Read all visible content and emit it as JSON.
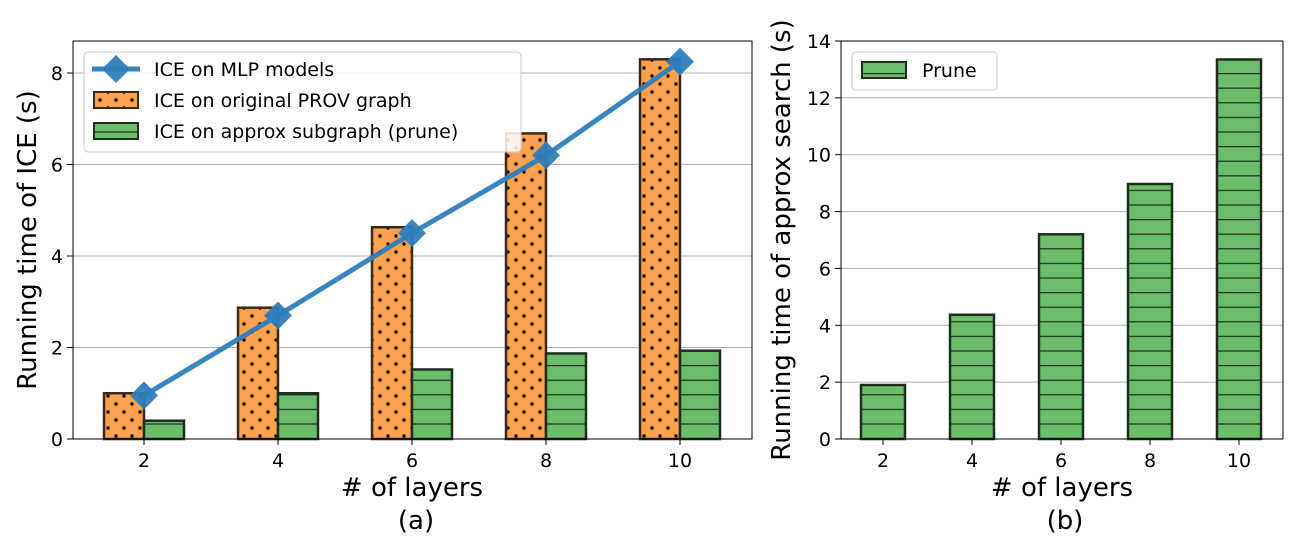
{
  "chart_data": [
    {
      "type": "bar",
      "xlabel": "# of layers",
      "ylabel": "Running time of ICE (s)",
      "subtitle": "(a)",
      "categories": [
        "2",
        "4",
        "6",
        "8",
        "10"
      ],
      "ylim": [
        0,
        8.7
      ],
      "yticks": [
        "0",
        "2",
        "4",
        "6",
        "8"
      ],
      "grid": "y",
      "legend_position": "top-left",
      "series": [
        {
          "name": "ICE on MLP models",
          "kind": "line",
          "values": [
            0.95,
            2.7,
            4.5,
            6.2,
            8.25
          ],
          "color": "#2e7ebc",
          "marker": "diamond"
        },
        {
          "name": "ICE on original PROV graph",
          "kind": "bar",
          "values": [
            1.0,
            2.87,
            4.63,
            6.68,
            8.3
          ],
          "color": "#ffa24d",
          "hatch": "dots"
        },
        {
          "name": "ICE on approx subgraph (prune)",
          "kind": "bar",
          "values": [
            0.4,
            1.0,
            1.52,
            1.87,
            1.93
          ],
          "color": "#6abd6a",
          "hatch": "horizontal"
        }
      ]
    },
    {
      "type": "bar",
      "xlabel": "# of layers",
      "ylabel": "Running time of approx search (s)",
      "subtitle": "(b)",
      "categories": [
        "2",
        "4",
        "6",
        "8",
        "10"
      ],
      "ylim": [
        0,
        14
      ],
      "yticks": [
        "0",
        "2",
        "4",
        "6",
        "8",
        "10",
        "12",
        "14"
      ],
      "grid": "y",
      "legend_position": "top-left",
      "series": [
        {
          "name": "Prune",
          "kind": "bar",
          "values": [
            1.9,
            4.37,
            7.2,
            8.97,
            13.35
          ],
          "color": "#6abd6a",
          "hatch": "horizontal"
        }
      ]
    }
  ]
}
